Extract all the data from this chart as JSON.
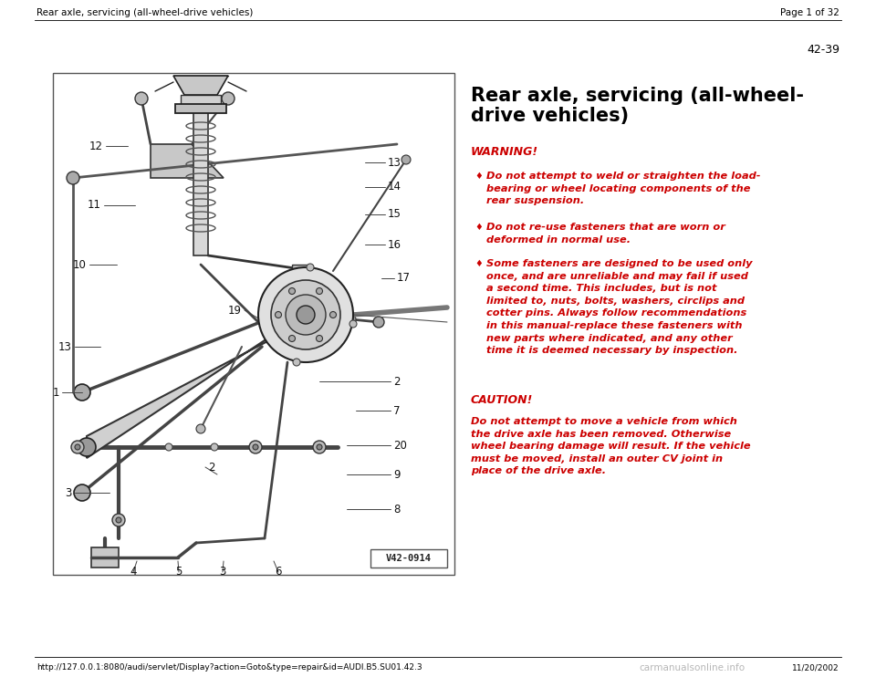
{
  "bg_color": "#ffffff",
  "header_text_left": "Rear axle, servicing (all-wheel-drive vehicles)",
  "header_text_right": "Page 1 of 32",
  "page_number": "42-39",
  "warning_label": "WARNING!",
  "bullet_char": "♦",
  "caution_label": "CAUTION!",
  "footer_url": "http://127.0.0.1:8080/audi/servlet/Display?action=Goto&type=repair&id=AUDI.B5.SU01.42.3",
  "footer_date": "11/20/2002",
  "footer_brand": "carmanualsonline.info",
  "diagram_label": "V42-0914",
  "red_color": "#cc0000",
  "black_color": "#000000",
  "dark_gray": "#333333",
  "med_gray": "#666666",
  "light_gray": "#aaaaaa",
  "header_font_size": 7.5,
  "title_font_size": 15,
  "warning_label_font_size": 9,
  "body_font_size": 8.2,
  "page_num_font_size": 9,
  "footer_font_size": 6.5
}
